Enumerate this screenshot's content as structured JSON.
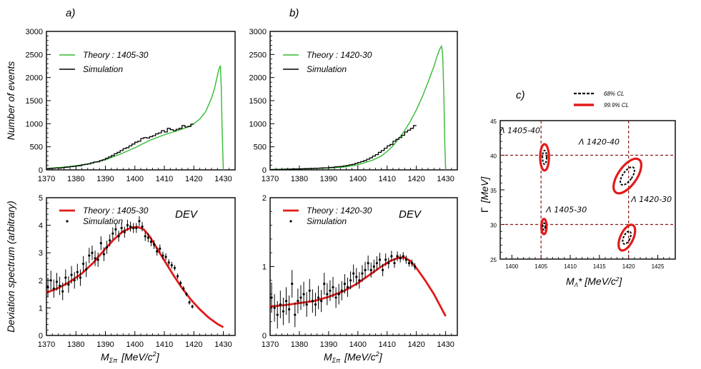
{
  "colors": {
    "theory_green": "#33bb33",
    "theory_red": "#e21a1a",
    "sim_black": "#000000",
    "contour_red": "#e21a1a",
    "grid_line": "#8b1a1a"
  },
  "chart_data": [
    {
      "id": "a-top",
      "panel_label": "a)",
      "type": "line",
      "xlim": [
        1370,
        1434
      ],
      "ylim": [
        0,
        3000
      ],
      "xticks": [
        "1370",
        "1380",
        "1390",
        "1400",
        "1410",
        "1420",
        "1430"
      ],
      "yticks": [
        "0",
        "500",
        "1000",
        "1500",
        "2000",
        "2500",
        "3000"
      ],
      "ylabel": "Number of events",
      "legend": [
        "Theory : 1405-30",
        "Simulation"
      ],
      "series": [
        {
          "name": "Theory : 1405-30",
          "color": "#33bb33",
          "x": [
            1370,
            1375,
            1380,
            1385,
            1390,
            1395,
            1400,
            1405,
            1410,
            1415,
            1418,
            1420,
            1422,
            1424,
            1426,
            1427,
            1428,
            1428.5,
            1429,
            1429.3,
            1429.6,
            1430
          ],
          "y": [
            30,
            55,
            90,
            140,
            220,
            340,
            480,
            640,
            760,
            860,
            930,
            1000,
            1100,
            1260,
            1550,
            1760,
            2040,
            2180,
            2260,
            1800,
            900,
            0
          ]
        },
        {
          "name": "Simulation",
          "type": "step",
          "color": "#000000",
          "x": [
            1370,
            1371,
            1372,
            1373,
            1374,
            1375,
            1376,
            1377,
            1378,
            1379,
            1380,
            1381,
            1382,
            1383,
            1384,
            1385,
            1386,
            1387,
            1388,
            1389,
            1390,
            1391,
            1392,
            1393,
            1394,
            1395,
            1396,
            1397,
            1398,
            1399,
            1400,
            1401,
            1402,
            1403,
            1404,
            1405,
            1406,
            1407,
            1408,
            1409,
            1410,
            1411,
            1412,
            1413,
            1414,
            1415,
            1416,
            1417,
            1418,
            1419,
            1420
          ],
          "y": [
            25,
            30,
            35,
            40,
            38,
            45,
            55,
            60,
            70,
            75,
            85,
            90,
            110,
            120,
            130,
            150,
            170,
            175,
            200,
            220,
            250,
            280,
            310,
            350,
            380,
            420,
            460,
            480,
            520,
            560,
            600,
            620,
            680,
            700,
            690,
            720,
            740,
            780,
            800,
            850,
            820,
            900,
            870,
            850,
            880,
            900,
            960,
            930,
            940,
            990,
            1000
          ]
        }
      ]
    },
    {
      "id": "b-top",
      "panel_label": "b)",
      "type": "line",
      "xlim": [
        1370,
        1434
      ],
      "ylim": [
        0,
        3000
      ],
      "xticks": [
        "1370",
        "1380",
        "1390",
        "1400",
        "1410",
        "1420",
        "1430"
      ],
      "yticks": [
        "0",
        "500",
        "1000",
        "1500",
        "2000",
        "2500",
        "3000"
      ],
      "legend": [
        "Theory : 1420-30",
        "Simulation"
      ],
      "series": [
        {
          "name": "Theory : 1420-30",
          "color": "#33bb33",
          "x": [
            1370,
            1380,
            1390,
            1395,
            1400,
            1405,
            1408,
            1410,
            1412,
            1414,
            1416,
            1418,
            1420,
            1422,
            1424,
            1426,
            1427,
            1428,
            1428.6,
            1429,
            1429.4,
            1429.7,
            1430
          ],
          "y": [
            10,
            20,
            40,
            60,
            110,
            210,
            300,
            400,
            520,
            680,
            850,
            1060,
            1300,
            1580,
            1900,
            2240,
            2450,
            2620,
            2680,
            2500,
            1600,
            600,
            0
          ]
        },
        {
          "name": "Simulation",
          "type": "step",
          "color": "#000000",
          "x": [
            1370,
            1371,
            1372,
            1373,
            1374,
            1375,
            1376,
            1377,
            1378,
            1379,
            1380,
            1381,
            1382,
            1383,
            1384,
            1385,
            1386,
            1387,
            1388,
            1389,
            1390,
            1391,
            1392,
            1393,
            1394,
            1395,
            1396,
            1397,
            1398,
            1399,
            1400,
            1401,
            1402,
            1403,
            1404,
            1405,
            1406,
            1407,
            1408,
            1409,
            1410,
            1411,
            1412,
            1413,
            1414,
            1415,
            1416,
            1417,
            1418,
            1419,
            1420
          ],
          "y": [
            5,
            8,
            10,
            10,
            12,
            15,
            15,
            18,
            20,
            20,
            22,
            25,
            25,
            30,
            30,
            35,
            35,
            40,
            45,
            45,
            50,
            55,
            65,
            70,
            75,
            85,
            95,
            110,
            120,
            140,
            160,
            180,
            200,
            230,
            260,
            300,
            330,
            380,
            420,
            470,
            520,
            550,
            620,
            660,
            700,
            750,
            820,
            860,
            900,
            960,
            980
          ]
        }
      ]
    },
    {
      "id": "a-bottom",
      "type": "scatter+line",
      "xlim": [
        1370,
        1434
      ],
      "ylim": [
        0,
        5
      ],
      "xticks": [
        "1370",
        "1380",
        "1390",
        "1400",
        "1410",
        "1420",
        "1430"
      ],
      "yticks": [
        "0",
        "1",
        "2",
        "3",
        "4",
        "5"
      ],
      "ylabel": "Deviation spectrum (arbitrary)",
      "xlabel": "M",
      "xlabel_sub": "Σπ",
      "xlabel_units": "[MeV/c",
      "xlabel_sup": "2",
      "xlabel_end": "]",
      "annotation": "DEV",
      "legend": [
        "Theory : 1405-30",
        "Simulation"
      ],
      "series": [
        {
          "name": "Theory : 1405-30",
          "color": "#e21a1a",
          "x": [
            1370,
            1374,
            1378,
            1382,
            1386,
            1390,
            1393,
            1396,
            1399,
            1401,
            1403,
            1405,
            1407,
            1410,
            1413,
            1416,
            1419,
            1422,
            1425,
            1428,
            1430
          ],
          "y": [
            1.55,
            1.72,
            1.95,
            2.25,
            2.65,
            3.15,
            3.5,
            3.78,
            3.92,
            3.94,
            3.85,
            3.6,
            3.25,
            2.72,
            2.2,
            1.72,
            1.3,
            0.95,
            0.65,
            0.42,
            0.3
          ]
        },
        {
          "name": "Simulation",
          "type": "points",
          "color": "#000000",
          "x": [
            1370.5,
            1371.5,
            1372.5,
            1373.5,
            1374.5,
            1375.5,
            1376.5,
            1377.5,
            1378.5,
            1379.5,
            1380.5,
            1381.5,
            1382.5,
            1383.5,
            1384.5,
            1385.5,
            1386.5,
            1387.5,
            1388.5,
            1389.5,
            1390.5,
            1391.5,
            1392.5,
            1393.5,
            1394.5,
            1395.5,
            1396.5,
            1397.5,
            1398.5,
            1399.5,
            1400.5,
            1401.5,
            1402.5,
            1403.5,
            1404.5,
            1405.5,
            1406.5,
            1407.5,
            1408.5,
            1409.5,
            1410.5,
            1411.5,
            1412.5,
            1413.5,
            1414.5,
            1415.5,
            1416.5,
            1417.5,
            1418.5,
            1419.5
          ],
          "y": [
            1.75,
            2.0,
            1.7,
            1.95,
            1.8,
            1.6,
            2.1,
            1.85,
            2.2,
            2.0,
            2.3,
            2.1,
            2.6,
            2.4,
            2.9,
            3.0,
            2.8,
            2.75,
            3.35,
            2.95,
            3.2,
            3.45,
            3.7,
            3.85,
            3.6,
            3.9,
            3.75,
            4.0,
            3.95,
            3.9,
            3.9,
            4.15,
            3.95,
            3.6,
            3.55,
            3.4,
            3.3,
            3.05,
            3.15,
            2.9,
            2.85,
            2.65,
            2.55,
            2.45,
            2.15,
            1.9,
            1.7,
            1.5,
            1.2,
            1.05
          ],
          "err": [
            0.35,
            0.35,
            0.33,
            0.32,
            0.33,
            0.32,
            0.3,
            0.3,
            0.32,
            0.3,
            0.3,
            0.3,
            0.28,
            0.28,
            0.28,
            0.26,
            0.28,
            0.26,
            0.25,
            0.25,
            0.24,
            0.22,
            0.22,
            0.22,
            0.2,
            0.2,
            0.2,
            0.2,
            0.18,
            0.18,
            0.18,
            0.18,
            0.17,
            0.17,
            0.17,
            0.16,
            0.16,
            0.15,
            0.15,
            0.14,
            0.13,
            0.12,
            0.12,
            0.1,
            0.1,
            0.09,
            0.09,
            0.08,
            0.08,
            0.07
          ]
        }
      ]
    },
    {
      "id": "b-bottom",
      "type": "scatter+line",
      "xlim": [
        1370,
        1434
      ],
      "ylim": [
        0,
        2
      ],
      "xticks": [
        "1370",
        "1380",
        "1390",
        "1400",
        "1410",
        "1420",
        "1430"
      ],
      "yticks": [
        "0",
        "1",
        "2"
      ],
      "xlabel": "M",
      "xlabel_sub": "Σπ",
      "xlabel_units": "[MeV/c",
      "xlabel_sup": "2",
      "xlabel_end": "]",
      "annotation": "DEV",
      "legend": [
        "Theory : 1420-30",
        "Simulation"
      ],
      "series": [
        {
          "name": "Theory : 1420-30",
          "color": "#e21a1a",
          "x": [
            1370,
            1375,
            1380,
            1385,
            1390,
            1395,
            1400,
            1404,
            1408,
            1411,
            1414,
            1416,
            1418,
            1420,
            1423,
            1426,
            1430
          ],
          "y": [
            0.42,
            0.44,
            0.47,
            0.5,
            0.56,
            0.64,
            0.76,
            0.88,
            1.0,
            1.08,
            1.13,
            1.13,
            1.08,
            0.98,
            0.8,
            0.6,
            0.28
          ]
        },
        {
          "name": "Simulation",
          "type": "points",
          "color": "#000000",
          "x": [
            1370.5,
            1371.5,
            1372.5,
            1373.5,
            1374.5,
            1375.5,
            1376.5,
            1377.5,
            1378.5,
            1379.5,
            1380.5,
            1381.5,
            1382.5,
            1383.5,
            1384.5,
            1385.5,
            1386.5,
            1387.5,
            1388.5,
            1389.5,
            1390.5,
            1391.5,
            1392.5,
            1393.5,
            1394.5,
            1395.5,
            1396.5,
            1397.5,
            1398.5,
            1399.5,
            1400.5,
            1401.5,
            1402.5,
            1403.5,
            1404.5,
            1405.5,
            1406.5,
            1407.5,
            1408.5,
            1409.5,
            1410.5,
            1411.5,
            1412.5,
            1413.5,
            1414.5,
            1415.5,
            1416.5,
            1417.5,
            1418.5,
            1419.5
          ],
          "y": [
            0.55,
            0.4,
            0.3,
            0.45,
            0.35,
            0.5,
            0.38,
            0.75,
            0.3,
            0.5,
            0.55,
            0.6,
            0.45,
            0.65,
            0.5,
            0.45,
            0.55,
            0.5,
            0.75,
            0.6,
            0.65,
            0.7,
            0.55,
            0.6,
            0.65,
            0.75,
            0.7,
            0.8,
            0.9,
            0.85,
            0.8,
            0.9,
            0.95,
            1.05,
            0.95,
            1.0,
            1.05,
            1.1,
            0.95,
            1.1,
            1.05,
            1.15,
            1.05,
            1.15,
            1.12,
            1.15,
            1.1,
            1.05,
            1.05,
            1.0
          ],
          "err": [
            0.22,
            0.2,
            0.2,
            0.2,
            0.2,
            0.2,
            0.2,
            0.2,
            0.18,
            0.18,
            0.18,
            0.18,
            0.18,
            0.17,
            0.17,
            0.17,
            0.17,
            0.16,
            0.16,
            0.16,
            0.15,
            0.15,
            0.15,
            0.15,
            0.14,
            0.14,
            0.14,
            0.13,
            0.13,
            0.13,
            0.12,
            0.12,
            0.12,
            0.11,
            0.11,
            0.1,
            0.1,
            0.1,
            0.09,
            0.09,
            0.08,
            0.08,
            0.07,
            0.07,
            0.06,
            0.06,
            0.06,
            0.05,
            0.05,
            0.05
          ]
        }
      ]
    },
    {
      "id": "c",
      "panel_label": "c)",
      "type": "contour",
      "xlim": [
        1398,
        1428
      ],
      "ylim": [
        25,
        45
      ],
      "xticks": [
        "1400",
        "1405",
        "1410",
        "1415",
        "1420",
        "1425"
      ],
      "yticks": [
        "25",
        "30",
        "35",
        "40",
        "45"
      ],
      "xlabel": "M",
      "xlabel_sub": "Λ",
      "xlabel_units": "* [MeV/c",
      "xlabel_sup": "2",
      "xlabel_end": "]",
      "ylabel": "Γ",
      "ylabel_units": "[MeV]",
      "legend": [
        "68% CL",
        "99.9% CL"
      ],
      "reference_lines": {
        "x": [
          1405,
          1420
        ],
        "y": [
          30,
          40
        ]
      },
      "contours": [
        {
          "label": "Λ 1405-40",
          "cx": 1405.6,
          "cy": 39.7,
          "rx68": 0.35,
          "ry68": 1.0,
          "rx99": 0.75,
          "ry99": 1.9,
          "tilt": 0
        },
        {
          "label": "Λ 1420-40",
          "cx": 1419.8,
          "cy": 37.0,
          "rx68": 0.8,
          "ry68": 1.5,
          "rx99": 1.6,
          "ry99": 2.9,
          "tilt": 35
        },
        {
          "label": "Λ 1405-30",
          "cx": 1405.5,
          "cy": 29.7,
          "rx68": 0.2,
          "ry68": 0.5,
          "rx99": 0.45,
          "ry99": 1.1,
          "tilt": 0
        },
        {
          "label": "Λ 1420-30",
          "cx": 1419.7,
          "cy": 28.1,
          "rx68": 0.55,
          "ry68": 1.0,
          "rx99": 1.1,
          "ry99": 2.0,
          "tilt": 25
        }
      ]
    }
  ]
}
